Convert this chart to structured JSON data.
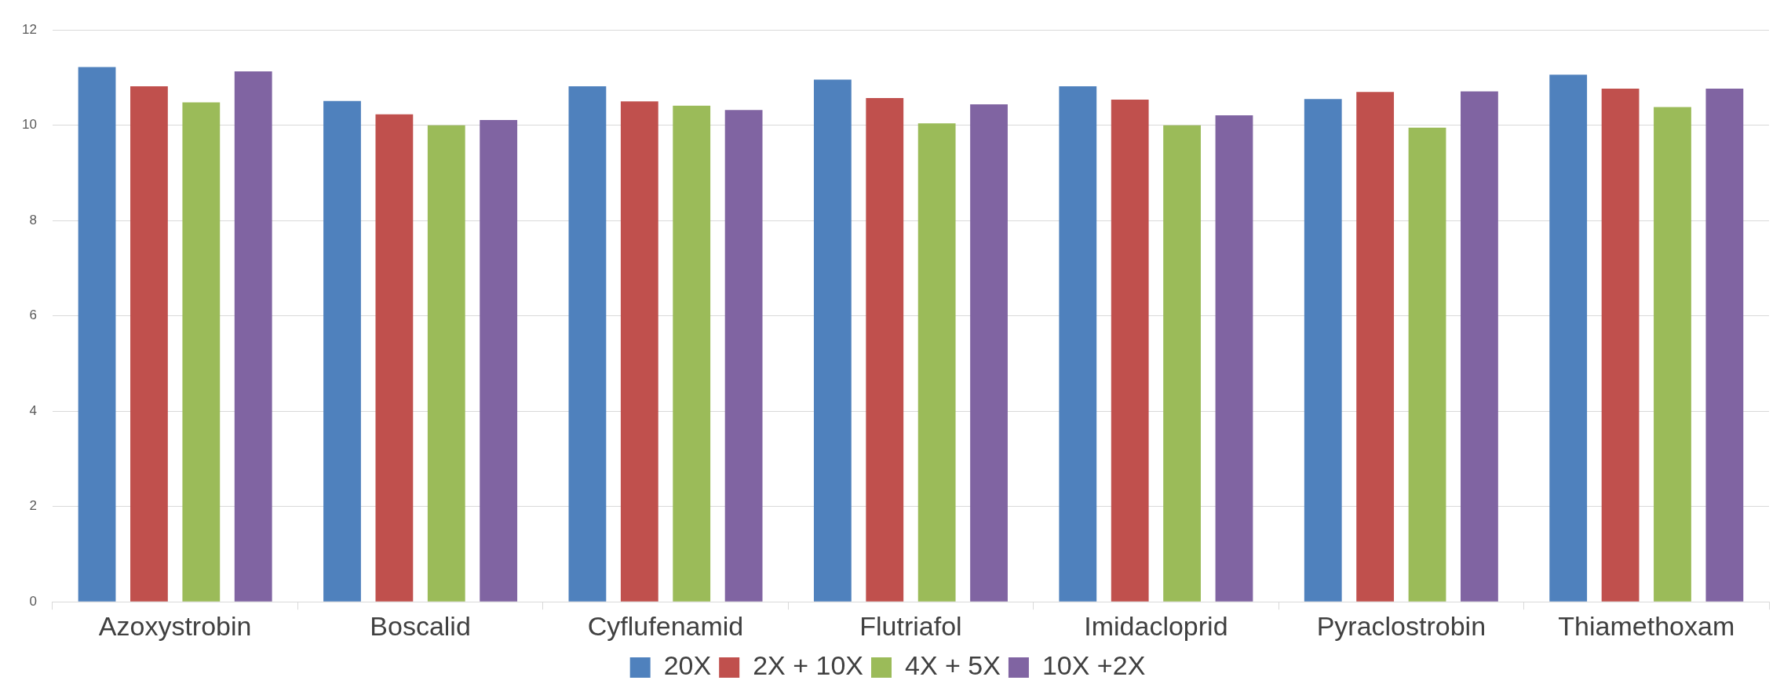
{
  "chart_data": {
    "type": "bar",
    "categories": [
      "Azoxystrobin",
      "Boscalid",
      "Cyflufenamid",
      "Flutriafol",
      "Imidacloprid",
      "Pyraclostrobin",
      "Thiamethoxam"
    ],
    "series": [
      {
        "name": "20X",
        "color": "#4f81bd",
        "values": [
          11.22,
          10.51,
          10.82,
          10.96,
          10.82,
          10.55,
          11.06
        ]
      },
      {
        "name": "2X + 10X",
        "color": "#c0504d",
        "values": [
          10.82,
          10.23,
          10.5,
          10.57,
          10.54,
          10.7,
          10.77
        ]
      },
      {
        "name": "4X + 5X",
        "color": "#9bbb59",
        "values": [
          10.48,
          10.0,
          10.41,
          10.04,
          10.0,
          9.95,
          10.38
        ]
      },
      {
        "name": "10X +2X",
        "color": "#8064a2",
        "values": [
          11.13,
          10.11,
          10.32,
          10.44,
          10.21,
          10.71,
          10.77
        ]
      }
    ],
    "ylim": [
      0,
      12
    ],
    "yticks": [
      0,
      2,
      4,
      6,
      8,
      10,
      12
    ],
    "grid": "y",
    "legend": "bottom"
  }
}
